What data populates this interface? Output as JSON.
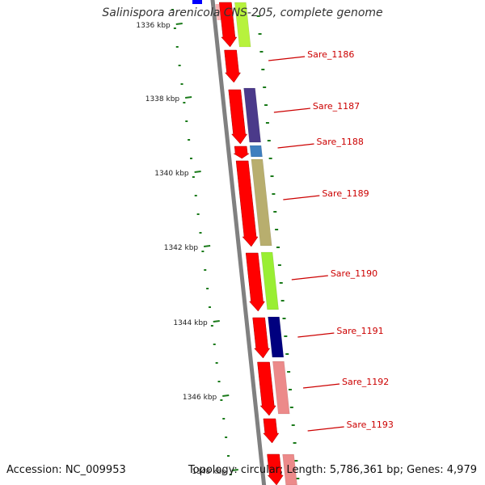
{
  "title": "Salinispora arenicola CNS-205, complete genome",
  "accession": "Accession: NC_009953",
  "topology": "Topology: circular; Length: 5,786,361 bp; Genes: 4,979",
  "ticks": [
    "1336 kbp",
    "1338 kbp",
    "1340 kbp",
    "1342 kbp",
    "1344 kbp",
    "1346 kbp",
    "1348 kbp"
  ],
  "gene_labels": [
    "Sare_1186",
    "Sare_1187",
    "Sare_1188",
    "Sare_1189",
    "Sare_1190",
    "Sare_1191",
    "Sare_1192",
    "Sare_1193"
  ],
  "colors": {
    "gene_forward": "#ff0000",
    "backbone": "#808080",
    "tick": "#1a7a1a",
    "label": "#cc0000",
    "cog_blue": "#0000ff",
    "cog_pink": "#f7b5b5",
    "cog_lime": "#b7f23d",
    "cog_purple": "#4b3a8a",
    "cog_steelblue": "#3f7fbf",
    "cog_khaki": "#b8ae6e",
    "cog_green": "#99ee33",
    "cog_navy": "#00007f",
    "cog_salmon": "#ec8a8a"
  }
}
